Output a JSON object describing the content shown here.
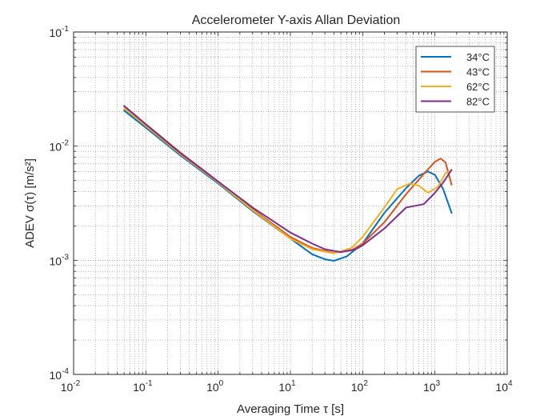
{
  "chart_data": {
    "type": "line",
    "title": "Accelerometer Y-axis Allan Deviation",
    "xlabel": "Averaging Time τ [s]",
    "ylabel": "ADEV σ(τ) [m/s²]",
    "x_scale": "log",
    "y_scale": "log",
    "xlim": [
      0.01,
      10000
    ],
    "ylim": [
      0.0001,
      0.1
    ],
    "x_ticks": [
      {
        "value": 0.01,
        "base": "10",
        "exp": "-2"
      },
      {
        "value": 0.1,
        "base": "10",
        "exp": "-1"
      },
      {
        "value": 1,
        "base": "10",
        "exp": "0"
      },
      {
        "value": 10,
        "base": "10",
        "exp": "1"
      },
      {
        "value": 100,
        "base": "10",
        "exp": "2"
      },
      {
        "value": 1000,
        "base": "10",
        "exp": "3"
      },
      {
        "value": 10000,
        "base": "10",
        "exp": "4"
      }
    ],
    "y_ticks": [
      {
        "value": 0.0001,
        "base": "10",
        "exp": "-4"
      },
      {
        "value": 0.001,
        "base": "10",
        "exp": "-3"
      },
      {
        "value": 0.01,
        "base": "10",
        "exp": "-2"
      },
      {
        "value": 0.1,
        "base": "10",
        "exp": "-1"
      }
    ],
    "grid": true,
    "minor_grid": true,
    "legend_position": "top-right",
    "series": [
      {
        "name": "34°C",
        "color": "#0072BD",
        "points": [
          [
            0.05,
            0.0205
          ],
          [
            0.1,
            0.0145
          ],
          [
            0.3,
            0.0083
          ],
          [
            1,
            0.0047
          ],
          [
            3,
            0.0027
          ],
          [
            10,
            0.00155
          ],
          [
            20,
            0.00113
          ],
          [
            30,
            0.00102
          ],
          [
            40,
            0.00099
          ],
          [
            60,
            0.00108
          ],
          [
            100,
            0.0014
          ],
          [
            200,
            0.0026
          ],
          [
            400,
            0.0043
          ],
          [
            600,
            0.0055
          ],
          [
            800,
            0.006
          ],
          [
            1000,
            0.0056
          ],
          [
            1300,
            0.0042
          ],
          [
            1700,
            0.0026
          ]
        ]
      },
      {
        "name": "43°C",
        "color": "#D95319",
        "points": [
          [
            0.05,
            0.0225
          ],
          [
            0.1,
            0.0156
          ],
          [
            0.3,
            0.0088
          ],
          [
            1,
            0.0049
          ],
          [
            3,
            0.0028
          ],
          [
            10,
            0.0016
          ],
          [
            20,
            0.00128
          ],
          [
            40,
            0.00116
          ],
          [
            70,
            0.00122
          ],
          [
            100,
            0.0014
          ],
          [
            200,
            0.00215
          ],
          [
            400,
            0.0038
          ],
          [
            700,
            0.0057
          ],
          [
            1000,
            0.0073
          ],
          [
            1200,
            0.0078
          ],
          [
            1400,
            0.0072
          ],
          [
            1700,
            0.0046
          ]
        ]
      },
      {
        "name": "62°C",
        "color": "#EDB120",
        "points": [
          [
            0.05,
            0.0215
          ],
          [
            0.1,
            0.015
          ],
          [
            0.3,
            0.0085
          ],
          [
            1,
            0.0048
          ],
          [
            3,
            0.00275
          ],
          [
            10,
            0.00155
          ],
          [
            20,
            0.00125
          ],
          [
            40,
            0.00115
          ],
          [
            70,
            0.00128
          ],
          [
            100,
            0.0016
          ],
          [
            200,
            0.0029
          ],
          [
            300,
            0.0042
          ],
          [
            450,
            0.0047
          ],
          [
            600,
            0.0045
          ],
          [
            800,
            0.0039
          ],
          [
            1100,
            0.0044
          ],
          [
            1400,
            0.0058
          ],
          [
            1700,
            0.0061
          ]
        ]
      },
      {
        "name": "82°C",
        "color": "#7E2F8E",
        "points": [
          [
            0.05,
            0.0225
          ],
          [
            0.1,
            0.0155
          ],
          [
            0.3,
            0.0087
          ],
          [
            1,
            0.0049
          ],
          [
            3,
            0.0029
          ],
          [
            10,
            0.00175
          ],
          [
            20,
            0.0014
          ],
          [
            30,
            0.00125
          ],
          [
            50,
            0.00118
          ],
          [
            80,
            0.00125
          ],
          [
            100,
            0.00135
          ],
          [
            200,
            0.0019
          ],
          [
            400,
            0.0029
          ],
          [
            700,
            0.0031
          ],
          [
            1000,
            0.0039
          ],
          [
            1300,
            0.0048
          ],
          [
            1700,
            0.0062
          ]
        ]
      }
    ]
  }
}
